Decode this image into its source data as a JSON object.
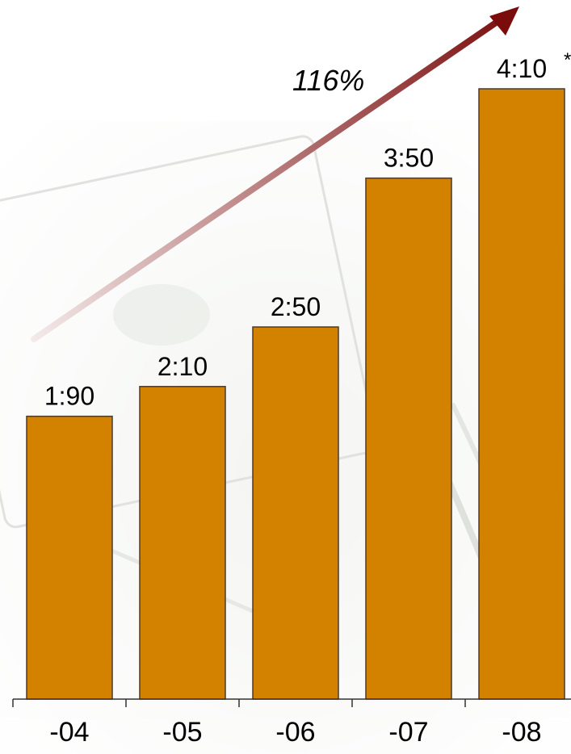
{
  "chart_data": {
    "type": "bar",
    "categories": [
      "-04",
      "-05",
      "-06",
      "-07",
      "-08"
    ],
    "values": [
      1.9,
      2.1,
      2.5,
      3.5,
      4.1
    ],
    "value_labels": [
      "1:90",
      "2:10",
      "2:50",
      "3:50",
      "4:10"
    ],
    "footnote_marks": [
      "",
      "",
      "",
      "",
      "*"
    ],
    "title": "",
    "xlabel": "",
    "ylabel": "",
    "ylim": [
      0,
      4.55
    ],
    "grid": false,
    "legend": "none",
    "annotation": {
      "text": "116%",
      "shape": "arrow",
      "from_category": "-04",
      "to_category": "-08"
    },
    "colors": {
      "bar_fill": "#D38200",
      "bar_stroke": "#4a3a2a",
      "arrow_start": "#f4eaea",
      "arrow_end": "#7a0c0c",
      "axis": "#333333",
      "background_watermark": "#d8dbd5"
    }
  }
}
